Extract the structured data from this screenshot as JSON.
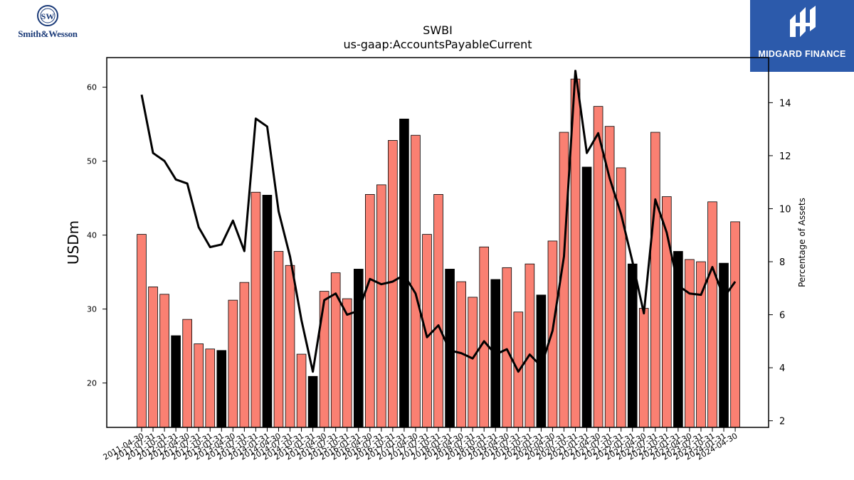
{
  "branding": {
    "left_logo_text": "Smith&Wesson",
    "right_logo_text": "MIDGARD FINANCE",
    "right_logo_color": "#2c5aab"
  },
  "chart_data": {
    "type": "bar",
    "title": "SWBI",
    "subtitle": "us-gaap:AccountsPayableCurrent",
    "ylabel": "USDm",
    "y2label": "Percentage of Assets",
    "ylim": [
      14,
      64
    ],
    "y2lim": [
      1.75,
      15.7
    ],
    "yticks": [
      20,
      30,
      40,
      50,
      60
    ],
    "y2ticks": [
      2,
      4,
      6,
      8,
      10,
      12,
      14
    ],
    "colors": {
      "bar": "#fa8072",
      "bar_highlight": "#000000",
      "line": "#000000"
    },
    "categories": [
      "2011-04-30",
      "2011-07-31",
      "2011-10-31",
      "2012-01-31",
      "2012-04-30",
      "2012-07-31",
      "2012-10-31",
      "2013-01-31",
      "2013-04-30",
      "2013-07-31",
      "2013-10-31",
      "2014-01-31",
      "2014-04-30",
      "2014-07-31",
      "2014-10-31",
      "2015-01-31",
      "2015-04-30",
      "2015-07-31",
      "2015-10-31",
      "2016-01-31",
      "2016-04-30",
      "2016-07-31",
      "2016-10-31",
      "2017-01-31",
      "2017-04-30",
      "2017-07-31",
      "2017-10-31",
      "2018-01-31",
      "2018-04-30",
      "2018-07-31",
      "2018-10-31",
      "2019-01-31",
      "2019-04-30",
      "2019-07-31",
      "2019-10-31",
      "2020-01-31",
      "2020-04-30",
      "2020-07-31",
      "2020-10-31",
      "2021-01-31",
      "2021-04-30",
      "2021-07-31",
      "2021-10-31",
      "2022-01-31",
      "2022-04-30",
      "2022-07-31",
      "2022-10-31",
      "2023-01-31",
      "2023-04-30",
      "2023-07-31",
      "2023-10-31",
      "2024-01-31",
      "2024-04-30"
    ],
    "series": [
      {
        "values": [
          40.1,
          33.0,
          32.0,
          26.4,
          28.6,
          25.3,
          24.6,
          24.4,
          31.2,
          33.6,
          45.8,
          45.4,
          37.8,
          35.9,
          23.9,
          20.9,
          32.4,
          34.9,
          31.4,
          35.4,
          45.5,
          46.8,
          52.8,
          55.7,
          53.5,
          40.1,
          45.5,
          35.4,
          33.7,
          31.6,
          38.4,
          34.0,
          35.6,
          29.6,
          36.1,
          31.9,
          39.2,
          53.9,
          61.1,
          49.2,
          57.4,
          54.7,
          49.1,
          36.1,
          30.1,
          53.9,
          45.2,
          37.8,
          36.7,
          36.4,
          44.5,
          36.2,
          41.8
        ],
        "highlight": [
          false,
          false,
          false,
          true,
          false,
          false,
          false,
          true,
          false,
          false,
          false,
          true,
          false,
          false,
          false,
          true,
          false,
          false,
          false,
          true,
          false,
          false,
          false,
          true,
          false,
          false,
          false,
          true,
          false,
          false,
          false,
          true,
          false,
          false,
          false,
          true,
          false,
          false,
          false,
          true,
          false,
          false,
          false,
          true,
          false,
          false,
          false,
          true,
          false,
          false,
          false,
          true,
          false
        ]
      },
      {
        "axis": "right",
        "type": "line",
        "values": [
          14.3,
          12.1,
          11.8,
          11.1,
          10.95,
          9.3,
          8.55,
          8.65,
          9.55,
          8.4,
          13.4,
          13.1,
          9.9,
          8.2,
          5.8,
          3.85,
          6.55,
          6.8,
          6.0,
          6.15,
          7.35,
          7.15,
          7.25,
          7.5,
          6.8,
          5.15,
          5.6,
          4.65,
          4.55,
          4.35,
          5.0,
          4.5,
          4.7,
          3.85,
          4.5,
          4.05,
          5.4,
          8.2,
          15.2,
          12.1,
          12.85,
          11.15,
          9.8,
          8.0,
          6.05,
          10.35,
          9.1,
          7.1,
          6.8,
          6.75,
          7.8,
          6.65,
          7.25
        ]
      }
    ]
  }
}
